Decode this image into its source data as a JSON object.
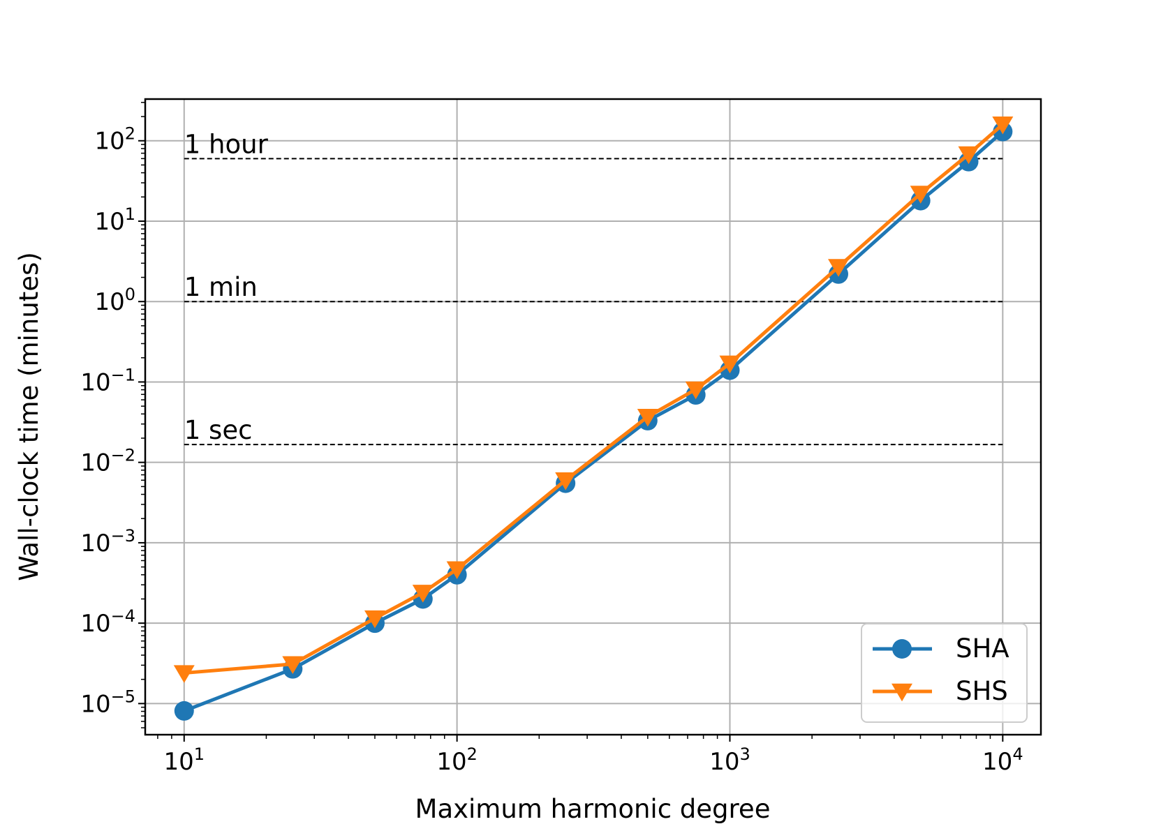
{
  "chart_data": {
    "type": "line",
    "xscale": "log",
    "yscale": "log",
    "xlabel": "Maximum harmonic degree",
    "ylabel": "Wall-clock time (minutes)",
    "xlim": [
      7.2,
      13800
    ],
    "ylim": [
      4.1e-06,
      330
    ],
    "xticks": [
      {
        "value": 10,
        "base": "10",
        "exp": "1"
      },
      {
        "value": 100,
        "base": "10",
        "exp": "2"
      },
      {
        "value": 1000,
        "base": "10",
        "exp": "3"
      },
      {
        "value": 10000,
        "base": "10",
        "exp": "4"
      }
    ],
    "yticks": [
      {
        "value": 1e-05,
        "base": "10",
        "exp": "−5"
      },
      {
        "value": 0.0001,
        "base": "10",
        "exp": "−4"
      },
      {
        "value": 0.001,
        "base": "10",
        "exp": "−3"
      },
      {
        "value": 0.01,
        "base": "10",
        "exp": "−2"
      },
      {
        "value": 0.1,
        "base": "10",
        "exp": "−1"
      },
      {
        "value": 1,
        "base": "10",
        "exp": "0"
      },
      {
        "value": 10,
        "base": "10",
        "exp": "1"
      },
      {
        "value": 100,
        "base": "10",
        "exp": "2"
      }
    ],
    "grid": true,
    "reference_lines": [
      {
        "label": "1 hour",
        "y": 60,
        "x_from": 10,
        "x_to": 10000
      },
      {
        "label": "1 min",
        "y": 1,
        "x_from": 10,
        "x_to": 10000
      },
      {
        "label": "1 sec",
        "y": 0.016667,
        "x_from": 10,
        "x_to": 10000
      }
    ],
    "x": [
      10,
      25,
      50,
      75,
      100,
      250,
      500,
      750,
      1000,
      2500,
      5000,
      7500,
      10000
    ],
    "series": [
      {
        "name": "SHA",
        "color": "#1f77b4",
        "marker": "circle",
        "values": [
          8.1e-06,
          2.7e-05,
          0.0001,
          0.0002,
          0.0004,
          0.0055,
          0.033,
          0.069,
          0.14,
          2.2,
          18,
          55,
          130
        ]
      },
      {
        "name": "SHS",
        "color": "#ff7f0e",
        "marker": "triangle-down",
        "values": [
          2.4e-05,
          3.1e-05,
          0.000115,
          0.00024,
          0.00047,
          0.006,
          0.037,
          0.081,
          0.17,
          2.7,
          22,
          68,
          160
        ]
      }
    ],
    "legend": {
      "placement": "lower-right",
      "entries": [
        "SHA",
        "SHS"
      ]
    }
  }
}
